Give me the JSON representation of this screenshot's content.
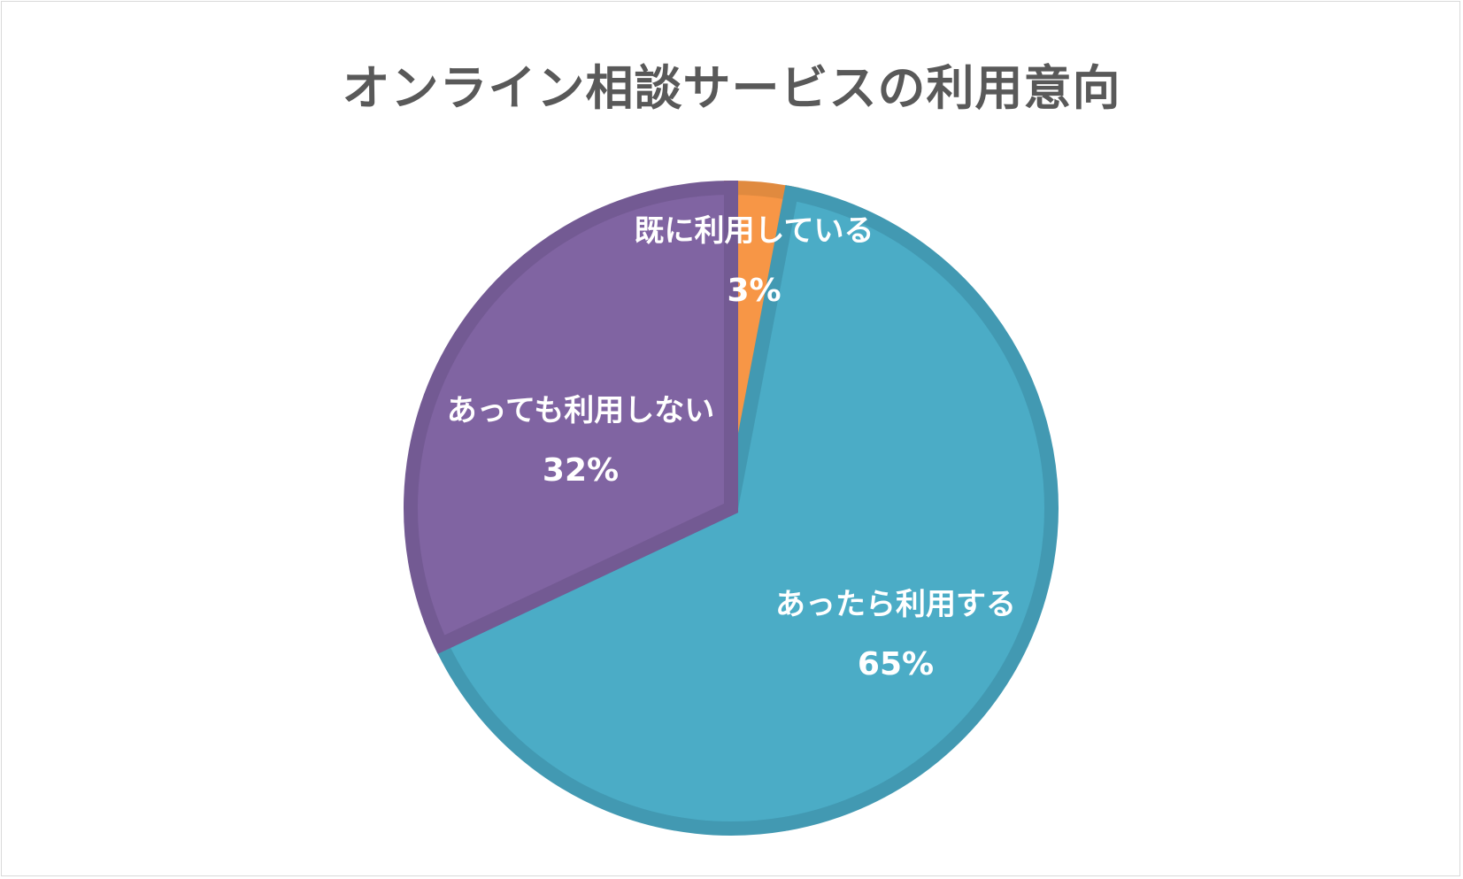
{
  "chart_data": {
    "type": "pie",
    "title": "オンライン相談サービスの利用意向",
    "slices": [
      {
        "label": "既に利用している",
        "value": 3,
        "value_label": "3%",
        "color": "#f79646",
        "border": "#e08a3f"
      },
      {
        "label": "あったら利用する",
        "value": 65,
        "value_label": "65%",
        "color": "#4bacc6",
        "border": "#4299b2"
      },
      {
        "label": "あっても利用しない",
        "value": 32,
        "value_label": "32%",
        "color": "#8064a2",
        "border": "#735a93"
      }
    ],
    "start_angle": "12 o'clock",
    "direction": "clockwise",
    "legend": "none",
    "data_labels": "inside"
  }
}
